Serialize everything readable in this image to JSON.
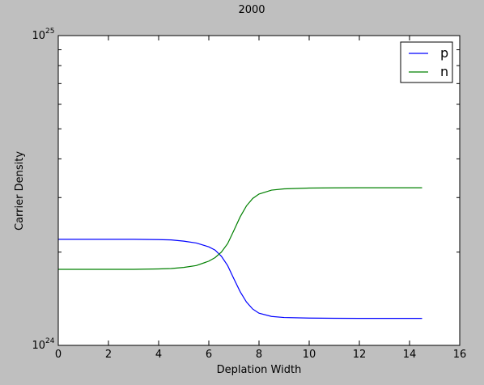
{
  "chart_data": {
    "type": "line",
    "title": "2000",
    "xlabel": "Deplation Width",
    "ylabel": "Carrier Density",
    "xlim": [
      0,
      16
    ],
    "xticks": [
      0,
      2,
      4,
      6,
      8,
      10,
      12,
      14,
      16
    ],
    "ylim": [
      1e+24,
      1e+25
    ],
    "yscale": "log",
    "yticks": [
      {
        "value": 1e+24,
        "base": "10",
        "exp": "24"
      },
      {
        "value": 1e+25,
        "base": "10",
        "exp": "25"
      }
    ],
    "grid": false,
    "legend": "top-right",
    "series": [
      {
        "name": "p",
        "color": "#0000ff",
        "x": [
          0,
          1,
          2,
          3,
          4,
          4.5,
          5,
          5.5,
          6,
          6.25,
          6.5,
          6.75,
          7,
          7.25,
          7.5,
          7.75,
          8,
          8.5,
          9,
          10,
          11,
          12,
          13,
          14,
          14.5
        ],
        "y": [
          2.2e+24,
          2.2e+24,
          2.2e+24,
          2.2e+24,
          2.195e+24,
          2.19e+24,
          2.17e+24,
          2.14e+24,
          2.08e+24,
          2.03e+24,
          1.94e+24,
          1.81e+24,
          1.64e+24,
          1.49e+24,
          1.38e+24,
          1.31e+24,
          1.27e+24,
          1.24e+24,
          1.23e+24,
          1.225e+24,
          1.223e+24,
          1.222e+24,
          1.222e+24,
          1.222e+24,
          1.222e+24
        ]
      },
      {
        "name": "n",
        "color": "#008000",
        "x": [
          0,
          1,
          2,
          3,
          4,
          4.5,
          5,
          5.5,
          6,
          6.25,
          6.5,
          6.75,
          7,
          7.25,
          7.5,
          7.75,
          8,
          8.5,
          9,
          10,
          11,
          12,
          13,
          14,
          14.5
        ],
        "y": [
          1.76e+24,
          1.76e+24,
          1.76e+24,
          1.76e+24,
          1.765e+24,
          1.77e+24,
          1.785e+24,
          1.81e+24,
          1.87e+24,
          1.92e+24,
          2e+24,
          2.13e+24,
          2.35e+24,
          2.6e+24,
          2.82e+24,
          2.98e+24,
          3.08e+24,
          3.17e+24,
          3.2e+24,
          3.22e+24,
          3.225e+24,
          3.227e+24,
          3.227e+24,
          3.227e+24,
          3.227e+24
        ]
      }
    ]
  }
}
